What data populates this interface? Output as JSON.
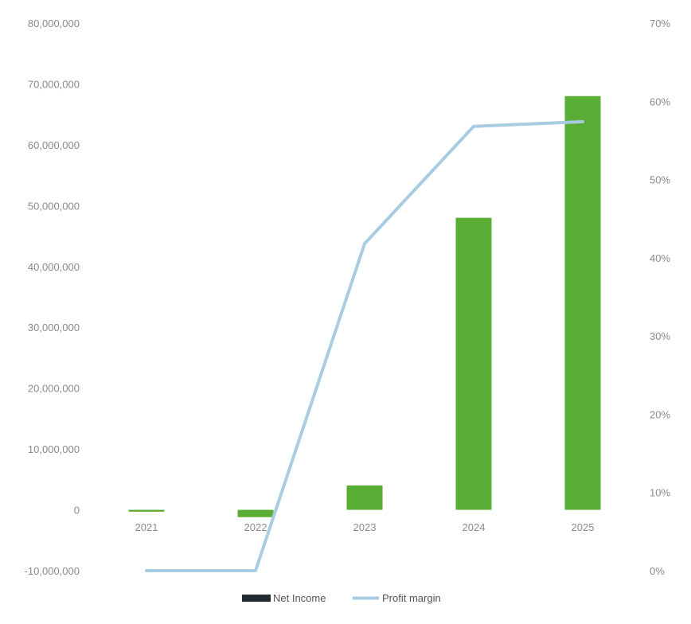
{
  "chart_data": {
    "type": "bar",
    "categories": [
      "2021",
      "2022",
      "2023",
      "2024",
      "2025"
    ],
    "series": [
      {
        "name": "Net Income",
        "type": "bar",
        "axis": "left",
        "color": "#5aae35",
        "legend_color": "#1f2a33",
        "values": [
          -300000,
          -1200000,
          4000000,
          48000000,
          68000000
        ]
      },
      {
        "name": "Profit margin",
        "type": "line",
        "axis": "right",
        "color": "#a8cce2",
        "values": [
          0,
          0,
          0.418,
          0.568,
          0.574
        ]
      }
    ],
    "y_left": {
      "range": [
        -10000000,
        80000000
      ],
      "ticks": [
        -10000000,
        0,
        10000000,
        20000000,
        30000000,
        40000000,
        50000000,
        60000000,
        70000000,
        80000000
      ],
      "tick_labels": [
        "-10,000,000",
        "0",
        "10,000,000",
        "20,000,000",
        "30,000,000",
        "40,000,000",
        "50,000,000",
        "60,000,000",
        "70,000,000",
        "80,000,000"
      ]
    },
    "y_right": {
      "range": [
        0,
        0.7
      ],
      "ticks": [
        0,
        0.1,
        0.2,
        0.3,
        0.4,
        0.5,
        0.6,
        0.7
      ],
      "tick_labels": [
        "0%",
        "10%",
        "20%",
        "30%",
        "40%",
        "50%",
        "60%",
        "70%"
      ]
    },
    "grid": false,
    "legend": {
      "position": "bottom",
      "items": [
        "Net Income",
        "Profit margin"
      ]
    }
  }
}
